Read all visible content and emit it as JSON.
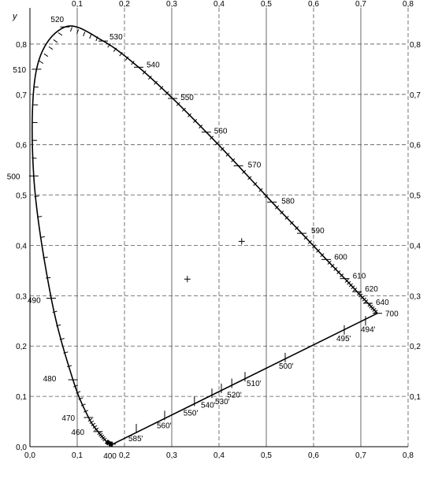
{
  "chart_data": {
    "type": "line",
    "title": "",
    "xlabel": "",
    "ylabel": "y",
    "xlim": [
      0.0,
      0.8
    ],
    "ylim": [
      0.0,
      0.85
    ],
    "x_ticks_bottom": [
      "0,0",
      "0,1",
      "0,2",
      "0,3",
      "0,4",
      "0,5",
      "0,6",
      "0,7",
      "0,8"
    ],
    "x_ticks_top": [
      "0,1",
      "0,2",
      "0,3",
      "0,4",
      "0,5",
      "0,6",
      "0,7",
      "0,8"
    ],
    "y_ticks_left": [
      "0,0",
      "0,1",
      "0,2",
      "0,3",
      "0,4",
      "0,5",
      "0,6",
      "0,7",
      "0,8"
    ],
    "y_ticks_right": [
      "0,1",
      "0,2",
      "0,3",
      "0,4",
      "0,5",
      "0,6",
      "0,7",
      "0,8"
    ],
    "grid": true,
    "series": [
      {
        "x": [
          0.175,
          0.172,
          0.168,
          0.161,
          0.144,
          0.124,
          0.091,
          0.045,
          0.008,
          0.014,
          0.074,
          0.155,
          0.23,
          0.302,
          0.373,
          0.441,
          0.512,
          0.575,
          0.627,
          0.666,
          0.692,
          0.715,
          0.735,
          0.175
        ],
        "y": [
          0.005,
          0.005,
          0.006,
          0.011,
          0.03,
          0.058,
          0.133,
          0.295,
          0.538,
          0.75,
          0.834,
          0.806,
          0.754,
          0.692,
          0.625,
          0.558,
          0.486,
          0.424,
          0.372,
          0.334,
          0.308,
          0.285,
          0.265,
          0.005
        ]
      }
    ],
    "spectral_labels": [
      {
        "text": "400",
        "x": 0.172,
        "y": 0.005
      },
      {
        "text": "460",
        "x": 0.144,
        "y": 0.03
      },
      {
        "text": "470",
        "x": 0.124,
        "y": 0.058
      },
      {
        "text": "480",
        "x": 0.091,
        "y": 0.133
      },
      {
        "text": "490",
        "x": 0.045,
        "y": 0.295
      },
      {
        "text": "500",
        "x": 0.008,
        "y": 0.538
      },
      {
        "text": "510",
        "x": 0.014,
        "y": 0.75
      },
      {
        "text": "520",
        "x": 0.074,
        "y": 0.834
      },
      {
        "text": "530",
        "x": 0.155,
        "y": 0.806
      },
      {
        "text": "540",
        "x": 0.23,
        "y": 0.754
      },
      {
        "text": "550",
        "x": 0.302,
        "y": 0.692
      },
      {
        "text": "560",
        "x": 0.373,
        "y": 0.625
      },
      {
        "text": "570",
        "x": 0.441,
        "y": 0.558
      },
      {
        "text": "580",
        "x": 0.512,
        "y": 0.486
      },
      {
        "text": "590",
        "x": 0.575,
        "y": 0.424
      },
      {
        "text": "600",
        "x": 0.627,
        "y": 0.372
      },
      {
        "text": "610",
        "x": 0.666,
        "y": 0.334
      },
      {
        "text": "620",
        "x": 0.692,
        "y": 0.308
      },
      {
        "text": "640",
        "x": 0.715,
        "y": 0.285
      },
      {
        "text": "700",
        "x": 0.735,
        "y": 0.265
      }
    ],
    "purple_labels": [
      {
        "text": "494'",
        "x": 0.71,
        "y": 0.25
      },
      {
        "text": "495'",
        "x": 0.665,
        "y": 0.232
      },
      {
        "text": "500'",
        "x": 0.54,
        "y": 0.177
      },
      {
        "text": "510'",
        "x": 0.455,
        "y": 0.139
      },
      {
        "text": "520'",
        "x": 0.427,
        "y": 0.126
      },
      {
        "text": "530'",
        "x": 0.405,
        "y": 0.116
      },
      {
        "text": "540'",
        "x": 0.385,
        "y": 0.106
      },
      {
        "text": "550'",
        "x": 0.348,
        "y": 0.09
      },
      {
        "text": "560'",
        "x": 0.285,
        "y": 0.062
      },
      {
        "text": "585'",
        "x": 0.225,
        "y": 0.036
      }
    ],
    "points": [
      {
        "x": 0.333,
        "y": 0.333
      },
      {
        "x": 0.448,
        "y": 0.408
      }
    ]
  }
}
